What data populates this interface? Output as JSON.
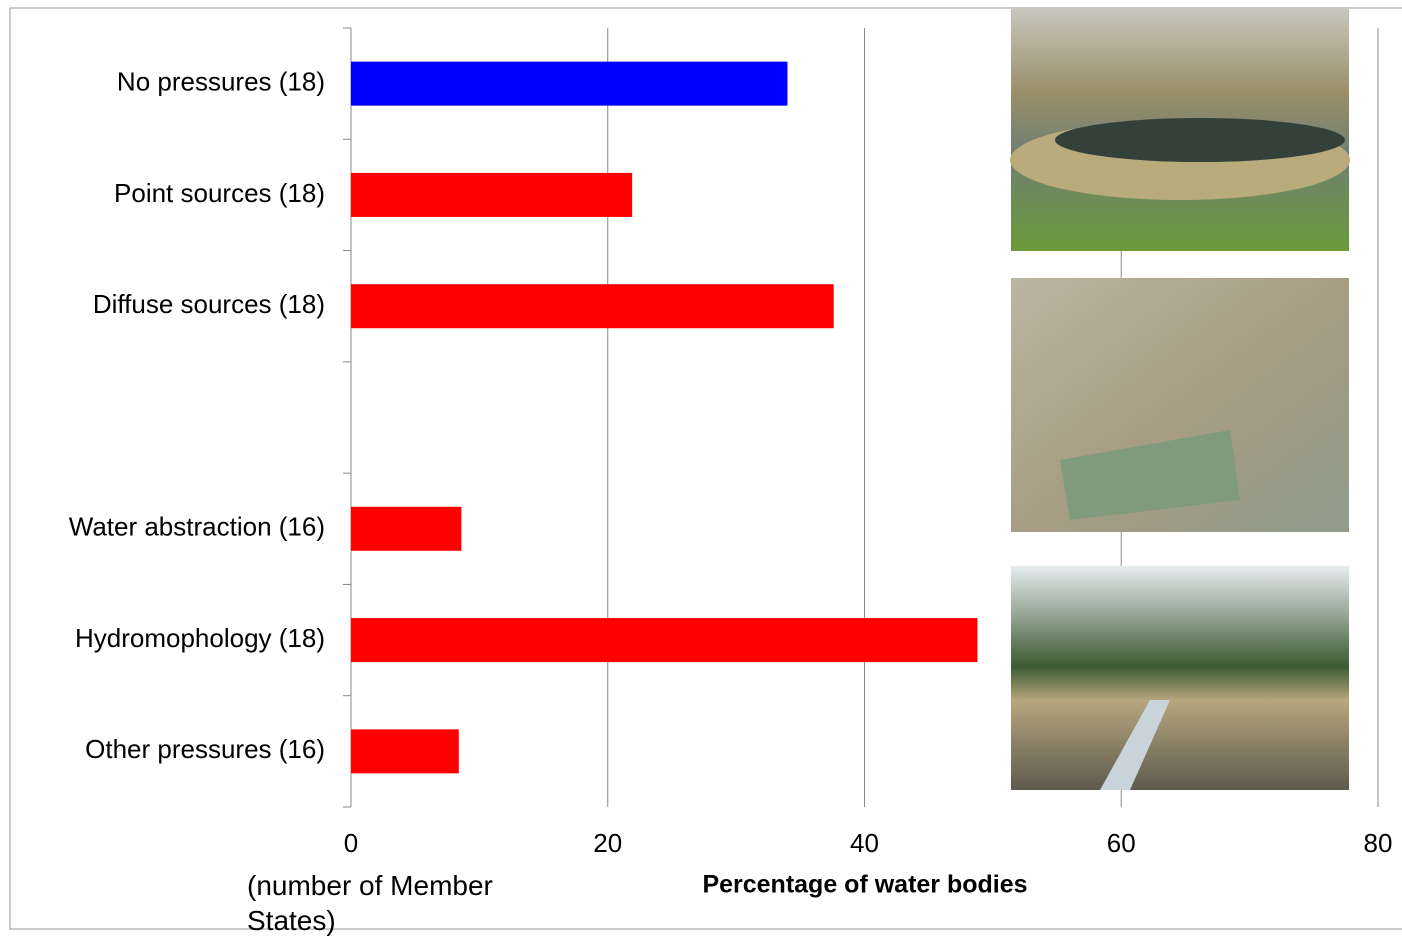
{
  "chart_data": {
    "type": "hbar",
    "x_label": "Percentage of water bodies",
    "note": "(number of Member States)",
    "categories": [
      "No pressures (18)",
      "Point sources (18)",
      "Diffuse sources (18)",
      null,
      "Water abstraction (16)",
      "Hydromophology (18)",
      "Other pressures (16)"
    ],
    "values": [
      34.0,
      21.9,
      37.6,
      null,
      8.6,
      48.8,
      8.4
    ],
    "colors": [
      "#0000ff",
      "#ff0000",
      "#ff0000",
      null,
      "#ff0000",
      "#ff0000",
      "#ff0000"
    ],
    "xlim": [
      0,
      80
    ],
    "xticks": [
      0,
      20,
      40,
      60,
      80
    ],
    "grid": true
  }
}
